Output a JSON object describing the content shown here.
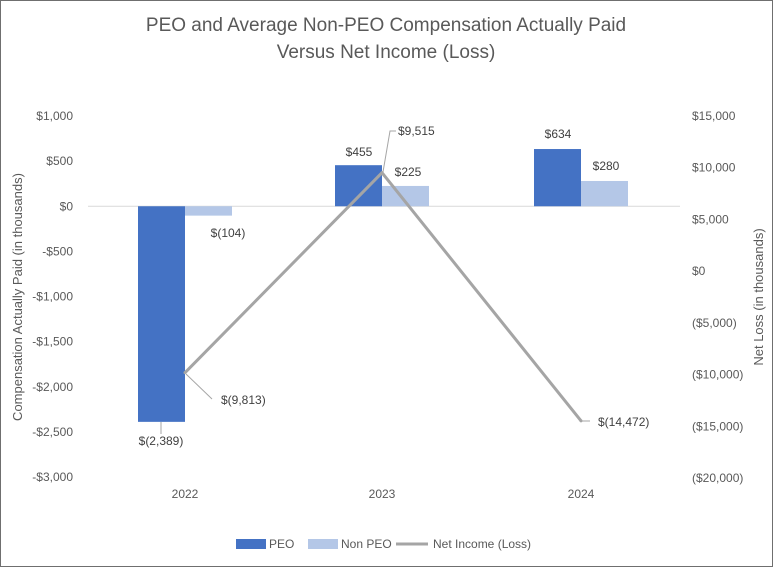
{
  "chart_data": {
    "type": "bar",
    "title_lines": [
      "PEO and Average Non-PEO Compensation Actually Paid",
      "Versus Net Income (Loss)"
    ],
    "categories": [
      "2022",
      "2023",
      "2024"
    ],
    "ylabel": "Compensation Actually Paid (in thousands)",
    "y2label": "Net Loss (in thousands)",
    "ylim": [
      -3000,
      1000
    ],
    "y2lim": [
      -20000,
      15000
    ],
    "y_ticks": [
      1000,
      500,
      0,
      -500,
      -1000,
      -1500,
      -2000,
      -2500,
      -3000
    ],
    "y_tick_labels": [
      "$1,000",
      "$500",
      "$0",
      "-$500",
      "-$1,000",
      "-$1,500",
      "-$2,000",
      "-$2,500",
      "-$3,000"
    ],
    "y2_ticks": [
      15000,
      10000,
      5000,
      0,
      -5000,
      -10000,
      -15000,
      -20000
    ],
    "y2_tick_labels": [
      "$15,000",
      "$10,000",
      "$5,000",
      "$0",
      "($5,000)",
      "($10,000)",
      "($15,000)",
      "($20,000)"
    ],
    "series": [
      {
        "name": "PEO",
        "type": "bar",
        "axis": "left",
        "color": "#4472c4",
        "values": [
          -2389,
          455,
          634
        ],
        "labels": [
          "$(2,389)",
          "$455",
          "$634"
        ]
      },
      {
        "name": "Non PEO",
        "type": "bar",
        "axis": "left",
        "color": "#b4c7e7",
        "values": [
          -104,
          225,
          280
        ],
        "labels": [
          "$(104)",
          "$225",
          "$280"
        ]
      },
      {
        "name": "Net Income (Loss)",
        "type": "line",
        "axis": "right",
        "color": "#a5a5a5",
        "values": [
          -9813,
          9515,
          -14472
        ],
        "labels": [
          "$(9,813)",
          "$9,515",
          "$(14,472)"
        ]
      }
    ],
    "legend": {
      "position": "bottom",
      "items": [
        "PEO",
        "Non PEO",
        "Net Income (Loss)"
      ]
    },
    "grid": false
  }
}
